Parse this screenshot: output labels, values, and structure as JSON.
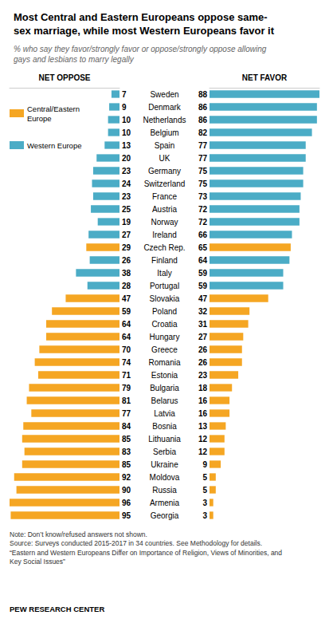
{
  "chart_data": [
    {
      "type": "bar",
      "orientation": "horizontal",
      "title": "Most Central and Eastern Europeans oppose same-\nsex marriage, while most Western Europeans favor it",
      "subtitle": "% who say they favor/strongly favor or oppose/strongly oppose allowing\ngays and lesbians to marry legally",
      "xlabel": "NET OPPOSE",
      "categories": [
        "Sweden",
        "Denmark",
        "Netherlands",
        "Belgium",
        "Spain",
        "UK",
        "Germany",
        "Switzerland",
        "France",
        "Austria",
        "Norway",
        "Ireland",
        "Czech Rep.",
        "Finland",
        "Italy",
        "Portugal",
        "Slovakia",
        "Poland",
        "Croatia",
        "Hungary",
        "Greece",
        "Romania",
        "Estonia",
        "Bulgaria",
        "Belarus",
        "Latvia",
        "Bosnia",
        "Lithuania",
        "Serbia",
        "Ukraine",
        "Moldova",
        "Russia",
        "Armenia",
        "Georgia"
      ],
      "values": [
        7,
        9,
        10,
        10,
        13,
        20,
        23,
        24,
        23,
        25,
        19,
        27,
        29,
        26,
        38,
        28,
        47,
        59,
        64,
        64,
        70,
        74,
        71,
        79,
        81,
        77,
        84,
        85,
        83,
        85,
        92,
        90,
        96,
        95
      ],
      "colors": [
        "#4bacc6",
        "#4bacc6",
        "#4bacc6",
        "#4bacc6",
        "#4bacc6",
        "#4bacc6",
        "#4bacc6",
        "#4bacc6",
        "#4bacc6",
        "#4bacc6",
        "#4bacc6",
        "#4bacc6",
        "#f5a623",
        "#4bacc6",
        "#4bacc6",
        "#4bacc6",
        "#f5a623",
        "#f5a623",
        "#f5a623",
        "#f5a623",
        "#f5a623",
        "#f5a623",
        "#f5a623",
        "#f5a623",
        "#f5a623",
        "#f5a623",
        "#f5a623",
        "#f5a623",
        "#f5a623",
        "#f5a623",
        "#f5a623",
        "#f5a623",
        "#f5a623",
        "#f5a623"
      ],
      "xlim": [
        0,
        96
      ],
      "data_labels": true,
      "tick_labels": "y",
      "grid": false,
      "annotations": [
        {
          "text": "Central/Eastern\nEurope",
          "color": "#f5a623"
        },
        {
          "text": "Western Europe",
          "color": "#4bacc6"
        }
      ],
      "note": "Note: Don’t know/refused answers not shown.\nSource: Surveys conducted 2015-2017 in 34 countries. See Methodology for details.\n“Eastern and Western Europeans Differ on Importance of Religion, Views of Minorities, and\nKey Social Issues”",
      "source": "PEW RESEARCH CENTER"
    },
    {
      "type": "bar",
      "orientation": "horizontal",
      "xlabel": "NET FAVOR",
      "categories": [
        "Sweden",
        "Denmark",
        "Netherlands",
        "Belgium",
        "Spain",
        "UK",
        "Germany",
        "Switzerland",
        "France",
        "Austria",
        "Norway",
        "Ireland",
        "Czech Rep.",
        "Finland",
        "Italy",
        "Portugal",
        "Slovakia",
        "Poland",
        "Croatia",
        "Hungary",
        "Greece",
        "Romania",
        "Estonia",
        "Bulgaria",
        "Belarus",
        "Latvia",
        "Bosnia",
        "Lithuania",
        "Serbia",
        "Ukraine",
        "Moldova",
        "Russia",
        "Armenia",
        "Georgia"
      ],
      "values": [
        88,
        86,
        86,
        82,
        77,
        77,
        75,
        75,
        73,
        72,
        72,
        66,
        65,
        64,
        59,
        59,
        47,
        32,
        31,
        27,
        26,
        26,
        23,
        18,
        16,
        16,
        13,
        12,
        12,
        9,
        5,
        5,
        3,
        3
      ],
      "colors": [
        "#4bacc6",
        "#4bacc6",
        "#4bacc6",
        "#4bacc6",
        "#4bacc6",
        "#4bacc6",
        "#4bacc6",
        "#4bacc6",
        "#4bacc6",
        "#4bacc6",
        "#4bacc6",
        "#4bacc6",
        "#f5a623",
        "#4bacc6",
        "#4bacc6",
        "#4bacc6",
        "#f5a623",
        "#f5a623",
        "#f5a623",
        "#f5a623",
        "#f5a623",
        "#f5a623",
        "#f5a623",
        "#f5a623",
        "#f5a623",
        "#f5a623",
        "#f5a623",
        "#f5a623",
        "#f5a623",
        "#f5a623",
        "#f5a623",
        "#f5a623",
        "#f5a623",
        "#f5a623"
      ],
      "xlim": [
        0,
        88
      ],
      "data_labels": true,
      "tick_labels": false,
      "grid": false
    }
  ]
}
